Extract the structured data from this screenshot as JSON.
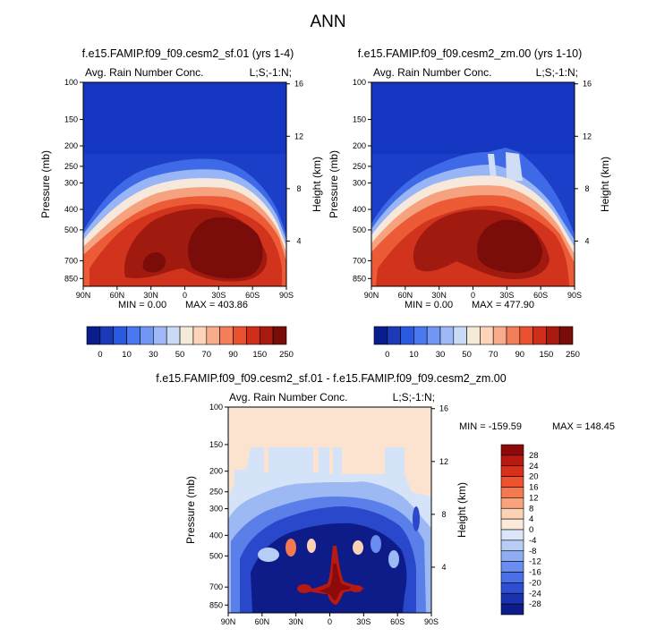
{
  "figure": {
    "title": "ANN"
  },
  "chart_data": [
    {
      "type": "heatmap",
      "panel": "top-left",
      "title": "f.e15.FAMIP.f09_f09.cesm2_sf.01 (yrs 1-4)",
      "variable": "Avg. Rain Number Conc.",
      "location": "L;S;-1:N;",
      "xlabel": "",
      "ylabel": "Pressure (mb)",
      "y2label": "Height (km)",
      "x_ticks": [
        "90N",
        "60N",
        "30N",
        "0",
        "30S",
        "60S",
        "90S"
      ],
      "x_values": [
        90,
        60,
        30,
        0,
        -30,
        -60,
        -90
      ],
      "y_ticks": [
        "100",
        "150",
        "200",
        "250",
        "300",
        "400",
        "500",
        "700",
        "850"
      ],
      "y_values": [
        100,
        150,
        200,
        250,
        300,
        400,
        500,
        700,
        850
      ],
      "y2_ticks": [
        "16",
        "12",
        "8",
        "4"
      ],
      "y2_values": [
        16,
        12,
        8,
        4
      ],
      "ylim": [
        100,
        925
      ],
      "min_label": "MIN =  0.00",
      "max_label": "MAX = 403.86",
      "min": 0.0,
      "max": 403.86,
      "colorbar": {
        "orientation": "horizontal",
        "labels": [
          "0",
          "10",
          "30",
          "50",
          "70",
          "90",
          "150",
          "250"
        ],
        "colors": [
          "#0a1d8c",
          "#1a3ab8",
          "#2a5ae0",
          "#4a79ef",
          "#7196f5",
          "#9fb8f7",
          "#cad9f5",
          "#f4ead8",
          "#fdd3ba",
          "#f9ac8c",
          "#f37e5c",
          "#e9502d",
          "#cf2f1a",
          "#a81a10",
          "#780d0a"
        ]
      }
    },
    {
      "type": "heatmap",
      "panel": "top-right",
      "title": "f.e15.FAMIP.f09_f09.cesm2_zm.00 (yrs 1-10)",
      "variable": "Avg. Rain Number Conc.",
      "location": "L;S;-1:N;",
      "xlabel": "",
      "ylabel": "Pressure (mb)",
      "y2label": "Height (km)",
      "x_ticks": [
        "90N",
        "60N",
        "30N",
        "0",
        "30S",
        "60S",
        "90S"
      ],
      "x_values": [
        90,
        60,
        30,
        0,
        -30,
        -60,
        -90
      ],
      "y_ticks": [
        "100",
        "150",
        "200",
        "250",
        "300",
        "400",
        "500",
        "700",
        "850"
      ],
      "y_values": [
        100,
        150,
        200,
        250,
        300,
        400,
        500,
        700,
        850
      ],
      "y2_ticks": [
        "16",
        "12",
        "8",
        "4"
      ],
      "y2_values": [
        16,
        12,
        8,
        4
      ],
      "ylim": [
        100,
        925
      ],
      "min_label": "MIN =  0.00",
      "max_label": "MAX = 477.90",
      "min": 0.0,
      "max": 477.9,
      "colorbar": {
        "orientation": "horizontal",
        "labels": [
          "0",
          "10",
          "30",
          "50",
          "70",
          "90",
          "150",
          "250"
        ],
        "colors": [
          "#0a1d8c",
          "#1a3ab8",
          "#2a5ae0",
          "#4a79ef",
          "#7196f5",
          "#9fb8f7",
          "#cad9f5",
          "#f4ead8",
          "#fdd3ba",
          "#f9ac8c",
          "#f37e5c",
          "#e9502d",
          "#cf2f1a",
          "#a81a10",
          "#780d0a"
        ]
      }
    },
    {
      "type": "heatmap",
      "panel": "bottom",
      "title": "f.e15.FAMIP.f09_f09.cesm2_sf.01 - f.e15.FAMIP.f09_f09.cesm2_zm.00",
      "variable": "Avg. Rain Number Conc.",
      "location": "L;S;-1:N;",
      "xlabel": "",
      "ylabel": "Pressure (mb)",
      "y2label": "Height (km)",
      "x_ticks": [
        "90N",
        "60N",
        "30N",
        "0",
        "30S",
        "60S",
        "90S"
      ],
      "x_values": [
        90,
        60,
        30,
        0,
        -30,
        -60,
        -90
      ],
      "y_ticks": [
        "100",
        "150",
        "200",
        "250",
        "300",
        "400",
        "500",
        "700",
        "850"
      ],
      "y_values": [
        100,
        150,
        200,
        250,
        300,
        400,
        500,
        700,
        850
      ],
      "y2_ticks": [
        "16",
        "12",
        "8",
        "4"
      ],
      "y2_values": [
        16,
        12,
        8,
        4
      ],
      "ylim": [
        100,
        925
      ],
      "min_label": "MIN = -159.59",
      "max_label": "MAX = 148.45",
      "min": -159.59,
      "max": 148.45,
      "colorbar": {
        "orientation": "vertical",
        "labels": [
          "28",
          "24",
          "20",
          "16",
          "12",
          "8",
          "4",
          "0",
          "-4",
          "-8",
          "-12",
          "-16",
          "-20",
          "-24",
          "-28"
        ],
        "colors": [
          "#8c0a0a",
          "#b81a12",
          "#d9301c",
          "#ee5230",
          "#f5794f",
          "#f9a37c",
          "#fcd2b4",
          "#fbeadb",
          "#dbe7f8",
          "#b7cdf6",
          "#8eaef3",
          "#6a8eef",
          "#4a6fe6",
          "#2f4fd2",
          "#1b32b0",
          "#0e1c8a"
        ]
      }
    }
  ]
}
